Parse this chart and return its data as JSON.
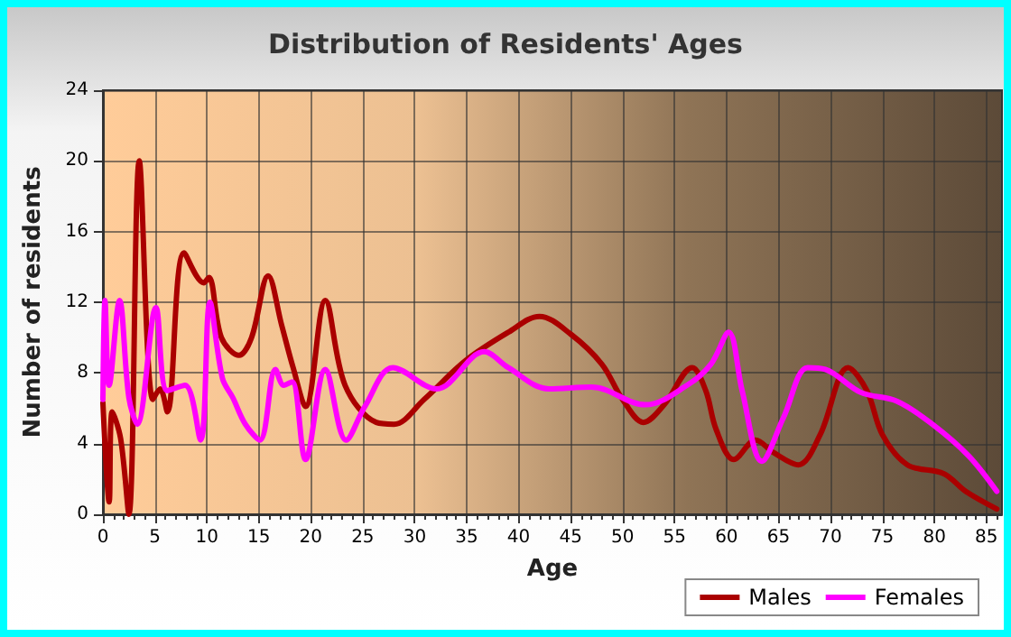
{
  "chart_data": {
    "type": "line",
    "title": "Distribution of Residents' Ages",
    "xlabel": "Age",
    "ylabel": "Number of residents",
    "xlim": [
      0,
      86.5
    ],
    "xticks": [
      0,
      5,
      10,
      15,
      20,
      25,
      30,
      35,
      40,
      45,
      50,
      55,
      60,
      65,
      70,
      75,
      80,
      85
    ],
    "ylim": [
      0,
      24
    ],
    "yticks": [
      0,
      4,
      8,
      12,
      16,
      20,
      24
    ],
    "grid": true,
    "legend": "bottom right",
    "marker": "none",
    "series": [
      {
        "name": "Males",
        "color": "#aa0000",
        "x": [
          0,
          0.6,
          0.9,
          1.7,
          2.5,
          3.5,
          4.8,
          5.5,
          6.2,
          7.8,
          9.7,
          10.2,
          11.4,
          13.1,
          14.3,
          15.9,
          17.2,
          18.3,
          19.5,
          21.4,
          23.3,
          26.3,
          28,
          30.9,
          34.9,
          39,
          42,
          45,
          48,
          50,
          52,
          54,
          56.7,
          58,
          59,
          60.7,
          62.8,
          64.5,
          66.9,
          69,
          71.7,
          73.5,
          75,
          77.4,
          80.9,
          83,
          86
        ],
        "values": [
          6.3,
          0.7,
          5.8,
          4.3,
          0,
          20,
          6.5,
          7.1,
          5.8,
          14.8,
          13.1,
          13.4,
          10,
          9,
          10,
          13.5,
          10.7,
          8.3,
          6.1,
          12.1,
          7.3,
          5.2,
          5.1,
          6.5,
          8.7,
          10.3,
          11.2,
          10.2,
          8.5,
          6.5,
          5.2,
          6.2,
          8.3,
          7,
          4.8,
          3.1,
          4.2,
          3.5,
          2.8,
          4.5,
          8.3,
          7,
          4.5,
          2.8,
          2.3,
          1.3,
          0.3
        ]
      },
      {
        "name": "Females",
        "color": "#ff00ff",
        "x": [
          0,
          0.2,
          0.6,
          1.6,
          2.5,
          3.3,
          5.1,
          6.2,
          7.9,
          9.4,
          10.3,
          11.5,
          12.5,
          13.7,
          15.1,
          16.6,
          17.4,
          18.2,
          19.5,
          21.4,
          23.4,
          25.2,
          27.9,
          32.1,
          36.7,
          39,
          42.9,
          47,
          52.2,
          56.2,
          58.5,
          60.2,
          61.5,
          63.4,
          65.5,
          67.8,
          69.5,
          72.9,
          76.4,
          79.8,
          83.3,
          86
        ],
        "values": [
          6.5,
          12.1,
          7.3,
          12.1,
          6.6,
          5.1,
          11.7,
          7,
          7.3,
          4.2,
          12,
          7.7,
          6.6,
          5.1,
          4.2,
          8.2,
          7.3,
          7.5,
          3.1,
          8.2,
          4.2,
          6.1,
          8.3,
          7.1,
          9.2,
          8.3,
          7.1,
          7.2,
          6.2,
          7.3,
          8.5,
          10.3,
          7,
          3,
          5.5,
          8.3,
          8.2,
          6.9,
          6.4,
          5.1,
          3.3,
          1.3
        ]
      }
    ]
  }
}
